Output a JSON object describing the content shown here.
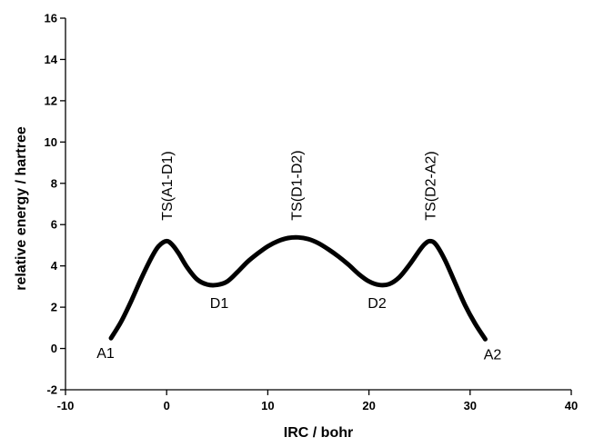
{
  "chart_data": {
    "type": "line",
    "title": "",
    "xlabel": "IRC / bohr",
    "ylabel": "relative energy / hartree",
    "xlim": [
      -10,
      40
    ],
    "ylim": [
      -2,
      16
    ],
    "xticks": [
      -10,
      0,
      10,
      20,
      30,
      40
    ],
    "yticks": [
      -2,
      0,
      2,
      4,
      6,
      8,
      10,
      12,
      14,
      16
    ],
    "grid": false,
    "legend": "none",
    "series": [
      {
        "color": "#000000",
        "x": [
          -5.5,
          -4.5,
          -3.5,
          -2.5,
          -1.5,
          -0.8,
          0,
          0.6,
          1.2,
          2,
          3,
          4,
          5,
          6,
          7,
          8,
          9,
          10,
          11,
          12,
          13,
          14,
          15,
          16,
          17,
          18,
          19,
          20,
          21,
          22,
          23,
          24,
          25,
          25.5,
          26,
          26.6,
          27.5,
          28.5,
          29.5,
          30.5,
          31.5
        ],
        "y": [
          0.5,
          1.3,
          2.3,
          3.4,
          4.4,
          4.95,
          5.2,
          5.0,
          4.6,
          3.95,
          3.35,
          3.1,
          3.08,
          3.25,
          3.7,
          4.2,
          4.6,
          4.95,
          5.2,
          5.35,
          5.38,
          5.3,
          5.1,
          4.8,
          4.45,
          4.05,
          3.6,
          3.25,
          3.08,
          3.12,
          3.45,
          4.05,
          4.75,
          5.05,
          5.2,
          5.05,
          4.3,
          3.2,
          2.1,
          1.2,
          0.45
        ]
      }
    ],
    "annotations": [
      {
        "text": "A1",
        "x": -5.5,
        "y": 0.5,
        "position": "below-left",
        "rotated": false
      },
      {
        "text": "D1",
        "x": 5.2,
        "y": 3.1,
        "position": "below",
        "rotated": false
      },
      {
        "text": "D2",
        "x": 20.8,
        "y": 3.1,
        "position": "below",
        "rotated": false
      },
      {
        "text": "A2",
        "x": 31.5,
        "y": 0.45,
        "position": "below-right",
        "rotated": false
      },
      {
        "text": "TS(A1-D1)",
        "x": 0,
        "y": 6.2,
        "position": "above",
        "rotated": true
      },
      {
        "text": "TS(D1-D2)",
        "x": 12.8,
        "y": 6.2,
        "position": "above",
        "rotated": true
      },
      {
        "text": "TS(D2-A2)",
        "x": 26,
        "y": 6.2,
        "position": "above",
        "rotated": true
      }
    ]
  }
}
